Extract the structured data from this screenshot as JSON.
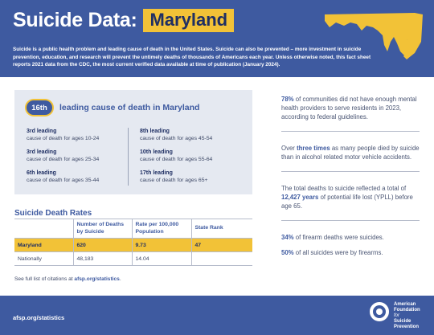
{
  "header": {
    "title": "Suicide Data:",
    "state": "Maryland",
    "intro": "Suicide is a public health problem and leading cause of death in the United States. Suicide can also be prevented – more investment in suicide prevention, education, and research will prevent the untimely deaths of thousands of Americans each year. Unless otherwise noted, this fact sheet reports 2021 data from the CDC, the most current verified data available at time of publication (January 2024).",
    "map_icon": "maryland-state-map"
  },
  "ranking": {
    "badge": "16th",
    "label": "leading cause of death in Maryland",
    "left": [
      {
        "rank": "3rd leading",
        "desc": "cause of death for ages 10-24"
      },
      {
        "rank": "3rd leading",
        "desc": "cause of death for ages 25-34"
      },
      {
        "rank": "6th leading",
        "desc": "cause of death for ages 35-44"
      }
    ],
    "right": [
      {
        "rank": "8th leading",
        "desc": "cause of death for ages 45-54"
      },
      {
        "rank": "10th leading",
        "desc": "cause of death for ages 55-64"
      },
      {
        "rank": "17th leading",
        "desc": "cause of death for ages 65+"
      }
    ]
  },
  "rates": {
    "title": "Suicide Death Rates",
    "headers": [
      "",
      "Number of Deaths by Suicide",
      "Rate per 100,000 Population",
      "State Rank"
    ],
    "rows": [
      {
        "name": "Maryland",
        "deaths": "620",
        "rate": "9.73",
        "rank": "47"
      },
      {
        "name": "Nationally",
        "deaths": "48,183",
        "rate": "14.04",
        "rank": ""
      }
    ]
  },
  "citation": {
    "prefix": "See full list of citations at ",
    "link": "afsp.org/statistics",
    "suffix": "."
  },
  "facts": [
    {
      "bold": "78%",
      "text": " of communities did not have enough mental health providers to serve residents in 2023, according to federal guidelines."
    },
    {
      "pre": "Over ",
      "bold": "three times",
      "text": " as many people died by suicide than in alcohol related motor vehicle accidents."
    },
    {
      "pre": "The total deaths to suicide reflected a total of ",
      "bold": "12,427 years",
      "text": " of potential life lost (YPLL) before age 65."
    },
    {
      "bold": "34%",
      "text": " of firearm deaths were suicides."
    },
    {
      "bold": "50%",
      "text": " of all suicides were by firearms."
    }
  ],
  "footer": {
    "url": "afsp.org/statistics",
    "org_line1": "American",
    "org_line2": "Foundation",
    "org_line3": "for",
    "org_line4": "Suicide",
    "org_line5": "Prevention",
    "logo_icon": "afsp-logo"
  },
  "colors": {
    "brand_blue": "#3e5aa0",
    "accent_yellow": "#f2c237",
    "panel_gray": "#e5e9f1"
  }
}
